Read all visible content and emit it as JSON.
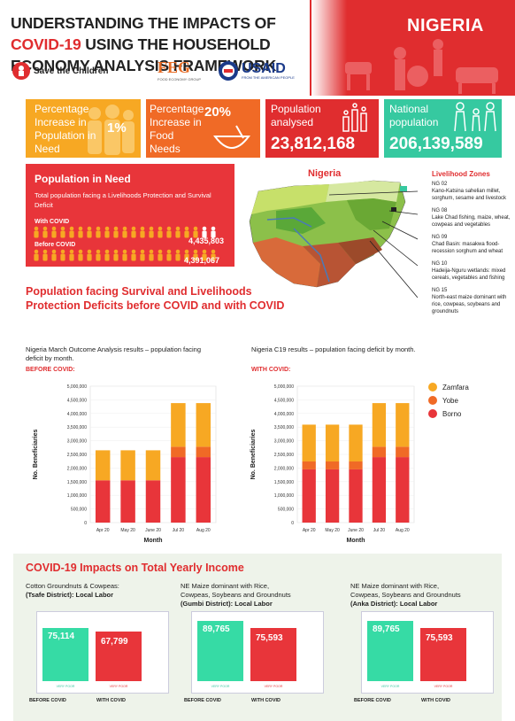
{
  "header": {
    "title_part1": "UNDERSTANDING THE IMPACTS OF ",
    "title_highlight": "COVID-19",
    "title_part2": " USING THE HOUSEHOLD ECONOMY ANALYSIS FRAMEWORK",
    "country": "NIGERIA",
    "logos": {
      "save": "Save the Children",
      "feg": "FEG",
      "feg_sub": "FOOD ECONOMY GROUP",
      "usaid": "USAID",
      "usaid_sub": "FROM THE AMERICAN PEOPLE"
    }
  },
  "stats": [
    {
      "label": "Percentage Increase in Population in Need",
      "value": "1%",
      "color": "#f7a823"
    },
    {
      "label": "Percentage Increase in Food Needs",
      "value": "20%",
      "color": "#f06a26"
    },
    {
      "label": "Population analysed",
      "value": "23,812,168",
      "color": "#e02d2f"
    },
    {
      "label": "National population",
      "value": "206,139,589",
      "color": "#36c9a0"
    }
  ],
  "pin": {
    "title": "Population in Need",
    "subtitle": "Total population facing a Livelihoods Protection and Survival Deficit",
    "with_label": "With COVID",
    "with_value": "4,435,803",
    "before_label": "Before COVID",
    "before_value": "4,391,067"
  },
  "map": {
    "title": "Nigeria",
    "legend_title": "Livelihood Zones",
    "zones": [
      {
        "code": "NG 02",
        "desc": "Kano-Katsina sahelian millet, sorghum, sesame and livestock"
      },
      {
        "code": "NG 08",
        "desc": "Lake Chad fishing, maize, wheat, cowpeas and vegetables"
      },
      {
        "code": "NG 09",
        "desc": "Chad Basin: masakwa flood-recession sorghum and wheat"
      },
      {
        "code": "NG 10",
        "desc": "Hadeija-Nguru wetlands: mixed cereals, vegetables and fishing"
      },
      {
        "code": "NG 15",
        "desc": "North-east maize dominant with rice, cowpeas, soybeans and groundnuts"
      }
    ]
  },
  "deficit": {
    "title_line1": "Population facing Survival and Livelihoods",
    "title_line2": "Protection Deficits before COVID and with COVID",
    "left_desc": "Nigeria March Outcome Analysis results – population facing deficit by month.",
    "right_desc": "Nigeria C19 results – population facing deficit by month.",
    "left_tag": "BEFORE COVID:",
    "right_tag": "WITH COVID:"
  },
  "chart_data": [
    {
      "type": "bar",
      "title": "",
      "xlabel": "Month",
      "ylabel": "No. Beneficiaries",
      "ylim": [
        0,
        5000000
      ],
      "categories": [
        "Apr 20",
        "May 20",
        "June 20",
        "Jul 20",
        "Aug 20"
      ],
      "series": [
        {
          "name": "Borno",
          "color": "#e8353a",
          "values": [
            1550000,
            1550000,
            1550000,
            2400000,
            2400000
          ]
        },
        {
          "name": "Yobe",
          "color": "#f06a26",
          "values": [
            0,
            0,
            0,
            380000,
            380000
          ]
        },
        {
          "name": "Zamfara",
          "color": "#f7a823",
          "values": [
            1100000,
            1100000,
            1100000,
            1600000,
            1600000
          ]
        }
      ],
      "yticks": [
        "0",
        "500,000",
        "1,000,000",
        "1,500,000",
        "2,000,000",
        "2,500,000",
        "3,000,000",
        "3,500,000",
        "4,000,000",
        "4,500,000",
        "5,000,000"
      ]
    },
    {
      "type": "bar",
      "title": "",
      "xlabel": "Month",
      "ylabel": "No. Beneficiaries",
      "ylim": [
        0,
        5000000
      ],
      "categories": [
        "Apr 20",
        "May 20",
        "June 20",
        "Jul 20",
        "Aug 20"
      ],
      "series": [
        {
          "name": "Borno",
          "color": "#e8353a",
          "values": [
            1950000,
            1950000,
            1950000,
            2400000,
            2400000
          ]
        },
        {
          "name": "Yobe",
          "color": "#f06a26",
          "values": [
            290000,
            290000,
            290000,
            380000,
            380000
          ]
        },
        {
          "name": "Zamfara",
          "color": "#f7a823",
          "values": [
            1350000,
            1350000,
            1350000,
            1600000,
            1600000
          ]
        }
      ],
      "yticks": [
        "0",
        "500,000",
        "1,000,000",
        "1,500,000",
        "2,000,000",
        "2,500,000",
        "3,000,000",
        "3,500,000",
        "4,000,000",
        "4,500,000",
        "5,000,000"
      ]
    }
  ],
  "legend": [
    "Zamfara",
    "Yobe",
    "Borno"
  ],
  "income": {
    "title": "COVID-19 Impacts on Total Yearly Income",
    "before": "BEFORE COVID",
    "with": "WITH COVID",
    "tag_green": "VERY POOR",
    "tag_red": "VERY POOR",
    "panels": [
      {
        "line1": "Cotton Groundnuts & Cowpeas:",
        "line2": "",
        "bold": "(Tsafe District): Local Labor",
        "before_value": "75,114",
        "with_value": "67,799"
      },
      {
        "line1": "NE Maize dominant with Rice,",
        "line2": "Cowpeas, Soybeans and Groundnuts",
        "bold": "(Gumbi District): Local Labor",
        "before_value": "89,765",
        "with_value": "75,593"
      },
      {
        "line1": "NE Maize dominant with Rice,",
        "line2": "Cowpeas, Soybeans and Groundnuts",
        "bold": "(Anka District): Local Labor",
        "before_value": "89,765",
        "with_value": "75,593"
      }
    ]
  }
}
